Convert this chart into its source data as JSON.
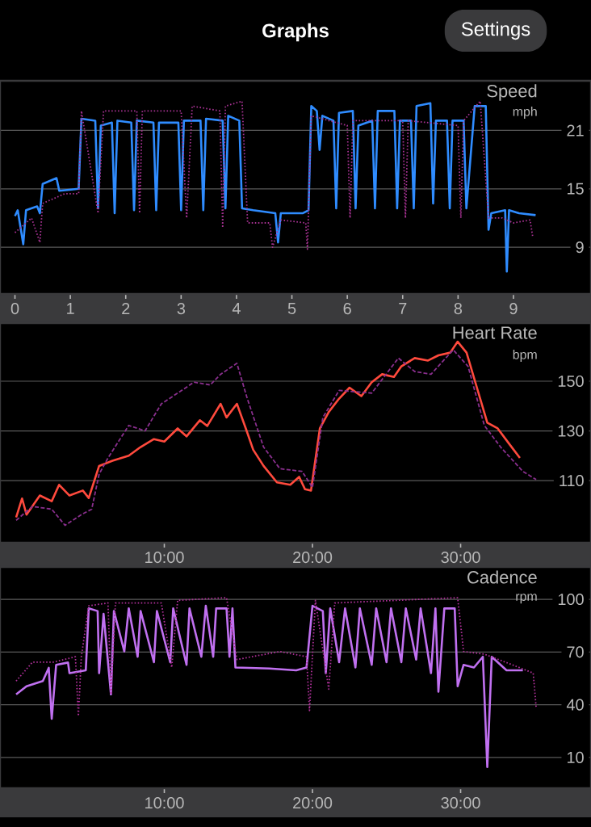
{
  "chart_data": [
    {
      "type": "line",
      "title": "Speed",
      "ylabel": "mph",
      "annotations": [
        "Graphs",
        "Settings"
      ],
      "xlim": [
        -0.27,
        10.4
      ],
      "ylim": [
        4.2,
        26.1
      ],
      "xticks": [
        0,
        1,
        2,
        3,
        4,
        5,
        6,
        7,
        8,
        9
      ],
      "yticks": [
        9,
        15,
        21
      ],
      "grid": "y",
      "marker": "none",
      "series": [
        {
          "color": "#2f8cff",
          "line_style": "solid",
          "x": [
            0,
            0.05,
            0.15,
            0.2,
            0.4,
            0.45,
            0.5,
            0.75,
            0.8,
            1.15,
            1.2,
            1.45,
            1.5,
            1.55,
            1.75,
            1.8,
            1.85,
            2.1,
            2.15,
            2.2,
            2.5,
            2.55,
            2.6,
            2.95,
            3.0,
            3.05,
            3.35,
            3.4,
            3.45,
            3.75,
            3.8,
            3.85,
            4.05,
            4.1,
            4.3,
            4.7,
            4.75,
            4.8,
            5.2,
            5.3,
            5.35,
            5.45,
            5.5,
            5.55,
            5.75,
            5.8,
            5.85,
            6.1,
            6.15,
            6.2,
            6.45,
            6.5,
            6.55,
            6.85,
            6.9,
            6.95,
            7.15,
            7.2,
            7.25,
            7.5,
            7.55,
            7.6,
            7.8,
            7.85,
            7.9,
            8.1,
            8.15,
            8.3,
            8.5,
            8.55,
            8.6,
            8.85,
            8.88,
            8.92,
            9.1,
            9.4
          ],
          "values": [
            12.2,
            12.8,
            9.3,
            12.8,
            13.2,
            12.5,
            15.5,
            16.1,
            14.8,
            15.0,
            22.2,
            22.0,
            13.0,
            21.5,
            21.8,
            12.5,
            22.0,
            21.8,
            12.8,
            22.0,
            21.8,
            12.8,
            21.8,
            21.8,
            12.8,
            22.0,
            22.0,
            12.8,
            22.2,
            22.0,
            13.0,
            22.5,
            22.0,
            13.0,
            12.8,
            12.5,
            9.5,
            12.5,
            12.5,
            12.8,
            23.5,
            23.0,
            19.0,
            22.5,
            22.0,
            13.0,
            22.8,
            23.0,
            13.0,
            21.5,
            22.0,
            13.0,
            23.0,
            23.0,
            13.0,
            22.0,
            22.0,
            13.0,
            23.5,
            23.8,
            13.5,
            22.0,
            22.0,
            13.0,
            22.0,
            22.0,
            13.0,
            23.5,
            23.5,
            10.8,
            12.5,
            12.8,
            6.5,
            12.8,
            12.5,
            12.3
          ]
        },
        {
          "color": "#a83293",
          "line_style": "dotted",
          "x": [
            0,
            0.3,
            0.45,
            0.5,
            0.9,
            1.15,
            1.2,
            1.5,
            1.6,
            2.2,
            2.25,
            2.3,
            3.0,
            3.1,
            3.2,
            3.7,
            3.75,
            3.8,
            4.1,
            4.2,
            4.6,
            4.65,
            4.8,
            5.25,
            5.28,
            5.35,
            6.0,
            6.05,
            6.1,
            7.0,
            7.05,
            7.1,
            8.0,
            8.05,
            8.1,
            8.4,
            8.55,
            8.8,
            9.0,
            9.3,
            9.35
          ],
          "values": [
            10.5,
            12,
            9.5,
            13.5,
            14.5,
            14.5,
            23,
            12.5,
            23,
            23,
            12.5,
            23,
            23,
            12,
            23.5,
            23,
            11,
            23.5,
            24,
            11.5,
            11.5,
            9,
            11.8,
            11.5,
            8.8,
            22.5,
            21.5,
            12,
            22,
            22,
            12,
            22,
            21.5,
            12,
            22,
            24,
            12,
            12,
            11.5,
            11.8,
            10
          ]
        }
      ]
    },
    {
      "type": "line",
      "title": "Heart Rate",
      "ylabel": "bpm",
      "xlim": [
        -1.09,
        38.8
      ],
      "ylim": [
        85,
        173.4
      ],
      "xticks": [
        {
          "value": 10,
          "label": "10:00"
        },
        {
          "value": 20,
          "label": "20:00"
        },
        {
          "value": 30,
          "label": "30:00"
        }
      ],
      "yticks": [
        110,
        130,
        150
      ],
      "grid": "y",
      "marker": "none",
      "series": [
        {
          "color": "#ff4a3d",
          "line_style": "solid",
          "x": [
            0,
            0.4,
            0.7,
            1.6,
            2.4,
            2.9,
            3.6,
            4.5,
            4.9,
            5.6,
            6.5,
            7.6,
            8.4,
            9.3,
            10,
            10.9,
            11.5,
            12.4,
            12.9,
            13.8,
            14.2,
            14.9,
            15.5,
            16,
            16.7,
            17.6,
            18.5,
            19.1,
            19.5,
            19.9,
            20.5,
            21.1,
            21.8,
            22.5,
            23.3,
            24,
            24.7,
            25.5,
            26,
            26.9,
            27.8,
            28.5,
            29.3,
            29.8,
            30.4,
            31.1,
            31.8,
            32.5,
            33.3,
            34
          ],
          "values": [
            95.2,
            102.8,
            96.3,
            104,
            101.7,
            108.3,
            104,
            106,
            103,
            115.9,
            118,
            120,
            123.5,
            126.7,
            125.7,
            131,
            127.8,
            134.3,
            132,
            140.9,
            135.4,
            140.9,
            131,
            122.4,
            115.9,
            109.3,
            108.3,
            111.5,
            106.5,
            106,
            131,
            137.6,
            143,
            147.4,
            144,
            149.6,
            152.8,
            151.7,
            156,
            159.3,
            158.3,
            160.4,
            161.5,
            165.9,
            161.5,
            147.4,
            133.3,
            131,
            124.6,
            119.1
          ]
        },
        {
          "color": "#8a2f8e",
          "line_style": "dashed",
          "x": [
            0,
            1.1,
            2.4,
            3.3,
            4.4,
            5.1,
            5.6,
            6.2,
            7.6,
            8.7,
            9.8,
            10.9,
            12,
            13.1,
            13.8,
            14.9,
            15.6,
            16.7,
            17.8,
            19.3,
            20,
            20.7,
            21.8,
            24,
            25.8,
            26.9,
            28,
            29.5,
            30.5,
            31.6,
            32.7,
            34.2,
            35.1
          ],
          "values": [
            94,
            99.6,
            98.5,
            92,
            96.3,
            98.5,
            112.6,
            119.1,
            132.2,
            130,
            140.9,
            145.2,
            149.6,
            148.5,
            152.8,
            157.2,
            143,
            123.5,
            114.8,
            113.7,
            107.2,
            135.4,
            146.3,
            145.2,
            159.3,
            153.9,
            152.8,
            162.6,
            156,
            132.2,
            123.5,
            113.7,
            110.4
          ]
        }
      ]
    },
    {
      "type": "line",
      "title": "Cadence",
      "ylabel": "rpm",
      "xlim": [
        -1.09,
        38.8
      ],
      "ylim": [
        -7.5,
        118.4
      ],
      "xticks": [
        {
          "value": 10,
          "label": "10:00"
        },
        {
          "value": 20,
          "label": "20:00"
        },
        {
          "value": 30,
          "label": "30:00"
        }
      ],
      "yticks": [
        10,
        40,
        70,
        100
      ],
      "grid": "y",
      "marker": "none",
      "series": [
        {
          "color": "#c070f0",
          "line_style": "solid",
          "x": [
            0,
            0.7,
            1.8,
            2.2,
            2.4,
            2.7,
            3.5,
            3.6,
            4.7,
            4.9,
            5.5,
            5.6,
            5.9,
            6.4,
            6.6,
            7.3,
            7.6,
            8.2,
            8.4,
            9.3,
            9.5,
            10.4,
            10.6,
            11.5,
            11.7,
            12.5,
            12.8,
            13.3,
            13.5,
            14.2,
            14.4,
            14.6,
            14.8,
            17.1,
            18.9,
            19.6,
            20,
            20.7,
            20.9,
            21.2,
            21.8,
            22.2,
            22.9,
            23.2,
            24,
            24.3,
            25,
            25.3,
            26,
            26.3,
            27,
            27.3,
            28,
            28.3,
            28.5,
            28.9,
            29.6,
            29.8,
            30.2,
            30.9,
            31.5,
            31.8,
            32.1,
            33.1,
            34.2
          ],
          "values": [
            45.9,
            50.5,
            53.5,
            61,
            32,
            62.7,
            64,
            58,
            59.6,
            94.8,
            93.3,
            58,
            91.7,
            45.9,
            93.3,
            70.3,
            94.8,
            67.3,
            93.3,
            64.2,
            93.3,
            64.2,
            94.8,
            62.7,
            94.8,
            67.3,
            96.3,
            67.3,
            94.8,
            94.8,
            67.3,
            94.8,
            61.2,
            60.6,
            59.6,
            61.2,
            96.3,
            93.3,
            58,
            94.8,
            64.2,
            94.8,
            61.2,
            94.8,
            62.7,
            94.8,
            64.2,
            94.8,
            64.2,
            94.8,
            65.7,
            94.8,
            58,
            94.8,
            47.4,
            94.8,
            94.8,
            50.5,
            62.7,
            61.2,
            67.3,
            4.6,
            67.3,
            59.6,
            59.6
          ]
        },
        {
          "color": "#b0309a",
          "line_style": "dotted",
          "x": [
            0,
            1.1,
            2.5,
            4,
            4.2,
            4.4,
            4.9,
            6.2,
            6.4,
            6.7,
            9.8,
            10.5,
            10.9,
            14.2,
            14.9,
            17.8,
            19.6,
            19.8,
            20.2,
            21.1,
            21.5,
            29.8,
            30.2,
            31.6,
            33.5,
            34.9,
            35.1
          ],
          "values": [
            53.5,
            64.2,
            64.2,
            67.3,
            33.6,
            67.3,
            96.3,
            97.9,
            45.9,
            97.9,
            97.9,
            61.2,
            99.4,
            100.9,
            65.7,
            70.3,
            67.3,
            36.7,
            99.4,
            48.9,
            97.9,
            100.9,
            70.3,
            68.8,
            62.7,
            58,
            38.2
          ]
        }
      ]
    }
  ]
}
